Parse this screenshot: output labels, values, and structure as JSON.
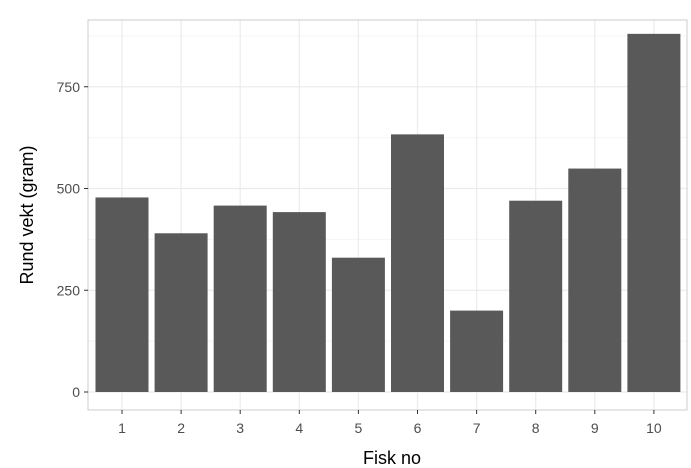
{
  "chart_data": {
    "type": "bar",
    "title": "",
    "xlabel": "Fisk no",
    "ylabel": "Rund vekt (gram)",
    "categories": [
      "1",
      "2",
      "3",
      "4",
      "5",
      "6",
      "7",
      "8",
      "9",
      "10"
    ],
    "values": [
      478,
      390,
      458,
      442,
      330,
      633,
      200,
      470,
      549,
      880
    ],
    "ylim": [
      0,
      900
    ],
    "yticks": [
      0,
      250,
      500,
      750
    ],
    "grid": true,
    "legend": "none",
    "colors": {
      "bar": "#595959",
      "panel_border": "#cccccc",
      "grid_major": "#ebebeb",
      "grid_minor": "#f5f5f5",
      "tick_mark": "#333333"
    }
  }
}
